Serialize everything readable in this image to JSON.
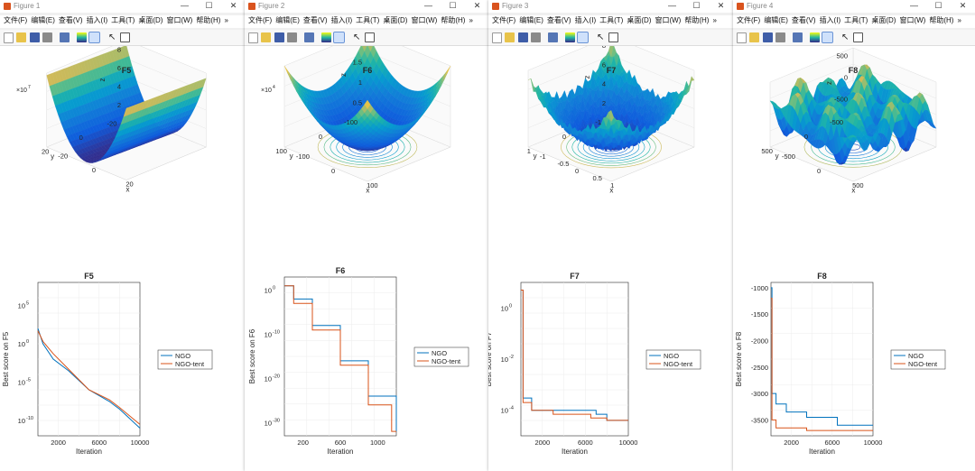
{
  "windows": [
    {
      "id": "fig1",
      "title": "Figure 1",
      "menu": [
        "文件(F)",
        "编辑(E)",
        "查看(V)",
        "插入(I)",
        "工具(T)",
        "桌面(D)",
        "窗口(W)",
        "帮助(H)"
      ],
      "surface_title": "F5",
      "surface_exponent_base": "×10",
      "surface_exponent_pow": "7",
      "z_ticks": [
        "8",
        "6",
        "4",
        "2"
      ],
      "y_ticks": [
        "20",
        "0",
        "-20"
      ],
      "x_ticks": [
        "-20",
        "0",
        "20"
      ],
      "curve_title": "F5",
      "curve_ylabel": "Best score on F5",
      "curve_xlabel": "Iteration",
      "curve_yticks": [
        {
          "base": "10",
          "exp": "5"
        },
        {
          "base": "10",
          "exp": "0"
        },
        {
          "base": "10",
          "exp": "-5"
        },
        {
          "base": "10",
          "exp": "-10"
        }
      ],
      "curve_xticks": [
        "2000",
        "6000",
        "10000"
      ]
    },
    {
      "id": "fig2",
      "title": "Figure 2",
      "menu": [
        "文件(F)",
        "编辑(E)",
        "查看(V)",
        "插入(I)",
        "工具(T)",
        "桌面(D)",
        "窗口(W)",
        "帮助(H)"
      ],
      "surface_title": "F6",
      "surface_exponent_base": "×10",
      "surface_exponent_pow": "4",
      "z_ticks": [
        "2",
        "1.5",
        "1",
        "0.5"
      ],
      "y_ticks": [
        "100",
        "0",
        "-100"
      ],
      "x_ticks": [
        "-100",
        "0",
        "100"
      ],
      "curve_title": "F6",
      "curve_ylabel": "Best score on F6",
      "curve_xlabel": "Iteration",
      "curve_yticks": [
        {
          "base": "10",
          "exp": "0"
        },
        {
          "base": "10",
          "exp": "-10"
        },
        {
          "base": "10",
          "exp": "-20"
        },
        {
          "base": "10",
          "exp": "-30"
        }
      ],
      "curve_xticks": [
        "200",
        "600",
        "1000"
      ]
    },
    {
      "id": "fig3",
      "title": "Figure 3",
      "menu": [
        "文件(F)",
        "编辑(E)",
        "查看(V)",
        "插入(I)",
        "工具(T)",
        "桌面(D)",
        "窗口(W)",
        "帮助(H)"
      ],
      "surface_title": "F7",
      "surface_exponent_base": "",
      "surface_exponent_pow": "",
      "z_ticks": [
        "8",
        "6",
        "4",
        "2"
      ],
      "y_ticks": [
        "1",
        "0",
        "-1"
      ],
      "x_ticks": [
        "-1",
        "-0.5",
        "0",
        "0.5",
        "1"
      ],
      "curve_title": "F7",
      "curve_ylabel": "Best score on F7",
      "curve_xlabel": "Iteration",
      "curve_yticks": [
        {
          "base": "10",
          "exp": "0"
        },
        {
          "base": "10",
          "exp": "-2"
        },
        {
          "base": "10",
          "exp": "-4"
        }
      ],
      "curve_xticks": [
        "2000",
        "6000",
        "10000"
      ]
    },
    {
      "id": "fig4",
      "title": "Figure 4",
      "menu": [
        "文件(F)",
        "编辑(E)",
        "查看(V)",
        "插入(I)",
        "工具(T)",
        "桌面(D)",
        "窗口(W)",
        "帮助(H)"
      ],
      "surface_title": "F8",
      "surface_exponent_base": "",
      "surface_exponent_pow": "",
      "z_ticks": [
        "500",
        "0",
        "-500"
      ],
      "y_ticks": [
        "500",
        "0",
        "-500"
      ],
      "x_ticks": [
        "-500",
        "0",
        "500"
      ],
      "curve_title": "F8",
      "curve_ylabel": "Best score on F8",
      "curve_xlabel": "Iteration",
      "curve_yticks_plain": [
        "-1000",
        "-1500",
        "-2000",
        "-2500",
        "-3000",
        "-3500"
      ],
      "curve_xticks": [
        "2000",
        "6000",
        "10000"
      ]
    }
  ],
  "shared": {
    "z_label": "z",
    "x_label": "x",
    "y_label": "y",
    "legend_ngo": "NGO",
    "legend_ngo_tent": "NGO-tent",
    "window_controls": {
      "minimize": "—",
      "maximize": "☐",
      "close": "✕"
    },
    "toolbar_overflow": "»"
  },
  "colors": {
    "ngo": "#0072bd",
    "ngo_tent": "#d95319",
    "parula_low": "#352a87",
    "parula_mid": "#21b6a4",
    "parula_high": "#f9fb0e"
  },
  "chart_data": [
    {
      "type": "line",
      "title": "F5",
      "xlabel": "Iteration",
      "ylabel": "Best score on F5",
      "yscale": "log",
      "xlim": [
        0,
        10000
      ],
      "ylim": [
        1e-12,
        100000000.0
      ],
      "series": [
        {
          "name": "NGO",
          "x": [
            1,
            500,
            1500,
            3000,
            5000,
            7000,
            8000,
            10000
          ],
          "y": [
            100,
            1,
            0.01,
            0.0003,
            1e-06,
            3e-08,
            3e-09,
            1e-11
          ]
        },
        {
          "name": "NGO-tent",
          "x": [
            1,
            500,
            1500,
            3000,
            5000,
            7000,
            8000,
            10000
          ],
          "y": [
            50,
            2,
            0.05,
            0.0005,
            1e-06,
            5e-08,
            5e-09,
            3e-11
          ]
        }
      ]
    },
    {
      "type": "line",
      "title": "F6",
      "xlabel": "Iteration",
      "ylabel": "Best score on F6",
      "yscale": "log",
      "xlim": [
        0,
        1200
      ],
      "ylim": [
        1e-33,
        1000.0
      ],
      "series": [
        {
          "name": "NGO",
          "x": [
            1,
            100,
            300,
            600,
            900,
            1200
          ],
          "y": [
            10,
            0.01,
            1e-08,
            1e-16,
            1e-24,
            1e-32
          ]
        },
        {
          "name": "NGO-tent",
          "x": [
            1,
            100,
            300,
            600,
            900,
            1150
          ],
          "y": [
            10,
            0.001,
            1e-09,
            1e-17,
            1e-26,
            1e-32
          ]
        }
      ]
    },
    {
      "type": "line",
      "title": "F7",
      "xlabel": "Iteration",
      "ylabel": "Best score on F7",
      "yscale": "log",
      "xlim": [
        0,
        10000
      ],
      "ylim": [
        1e-05,
        10
      ],
      "series": [
        {
          "name": "NGO",
          "x": [
            1,
            200,
            1000,
            3000,
            7000,
            8000,
            10000
          ],
          "y": [
            5,
            0.0003,
            0.0001,
            0.0001,
            7e-05,
            4e-05,
            4e-05
          ]
        },
        {
          "name": "NGO-tent",
          "x": [
            1,
            200,
            1000,
            3000,
            6500,
            8000,
            10000
          ],
          "y": [
            5,
            0.0002,
            0.0001,
            7e-05,
            5e-05,
            4e-05,
            4e-05
          ]
        }
      ]
    },
    {
      "type": "line",
      "title": "F8",
      "xlabel": "Iteration",
      "ylabel": "Best score on F8",
      "yscale": "linear",
      "xlim": [
        0,
        10000
      ],
      "ylim": [
        -3800,
        -900
      ],
      "series": [
        {
          "name": "NGO",
          "x": [
            1,
            100,
            500,
            1500,
            3500,
            6500,
            10000
          ],
          "y": [
            -1000,
            -3000,
            -3200,
            -3350,
            -3450,
            -3600,
            -3600
          ]
        },
        {
          "name": "NGO-tent",
          "x": [
            1,
            100,
            500,
            1500,
            3500,
            6500,
            10000
          ],
          "y": [
            -1200,
            -3500,
            -3650,
            -3650,
            -3700,
            -3700,
            -3700
          ]
        }
      ]
    }
  ]
}
